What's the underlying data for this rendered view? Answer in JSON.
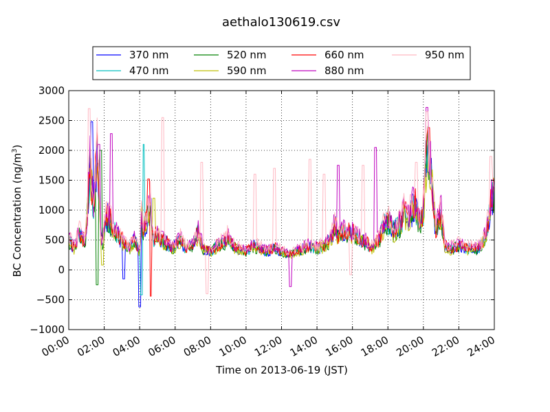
{
  "chart_data": {
    "type": "line",
    "title": "aethalo130619.csv",
    "xlabel": "Time on 2013-06-19 (JST)",
    "ylabel": "BC Concentration (ng/m",
    "ylabel_sup": "3",
    "ylabel_end": ")",
    "x_tick_labels": [
      "00:00",
      "02:00",
      "04:00",
      "06:00",
      "08:00",
      "10:00",
      "12:00",
      "14:00",
      "16:00",
      "18:00",
      "20:00",
      "22:00",
      "24:00"
    ],
    "x_ticks_hours": [
      0,
      2,
      4,
      6,
      8,
      10,
      12,
      14,
      16,
      18,
      20,
      22,
      24
    ],
    "xlim_hours": [
      0,
      24
    ],
    "y_ticks": [
      -1000,
      -500,
      0,
      500,
      1000,
      1500,
      2000,
      2500,
      3000
    ],
    "y_tick_labels": [
      "−1000",
      "−500",
      "0",
      "500",
      "1000",
      "1500",
      "2000",
      "2500",
      "3000"
    ],
    "ylim": [
      -1000,
      3000
    ],
    "grid": true,
    "legend_position": "top",
    "legend_columns": 4,
    "base_profile": {
      "x_hours": [
        0,
        0.3,
        0.6,
        0.9,
        1.0,
        1.2,
        1.4,
        1.6,
        1.8,
        1.9,
        2.0,
        2.2,
        2.5,
        2.8,
        3.1,
        3.4,
        3.7,
        3.9,
        4.0,
        4.1,
        4.2,
        4.4,
        4.6,
        4.8,
        5.0,
        5.2,
        5.5,
        5.8,
        6.0,
        6.3,
        6.6,
        7.0,
        7.3,
        7.6,
        8.0,
        8.4,
        8.8,
        9.0,
        9.2,
        9.6,
        10.0,
        10.4,
        10.8,
        11.2,
        11.6,
        12.0,
        12.4,
        12.8,
        13.2,
        13.6,
        14.0,
        14.4,
        14.8,
        15.0,
        15.2,
        15.6,
        16.0,
        16.4,
        16.8,
        17.0,
        17.2,
        17.5,
        17.8,
        18.0,
        18.3,
        18.6,
        18.9,
        19.2,
        19.5,
        19.8,
        20.0,
        20.2,
        20.4,
        20.7,
        21.0,
        21.2,
        21.5,
        22.0,
        22.5,
        23.0,
        23.3,
        23.6,
        23.9,
        24.0
      ],
      "values": [
        500,
        350,
        600,
        450,
        700,
        1700,
        1000,
        2000,
        600,
        400,
        700,
        900,
        650,
        550,
        450,
        350,
        500,
        350,
        300,
        900,
        650,
        800,
        1100,
        500,
        600,
        500,
        450,
        350,
        400,
        500,
        350,
        400,
        600,
        350,
        300,
        400,
        450,
        550,
        400,
        350,
        300,
        400,
        350,
        300,
        350,
        300,
        250,
        300,
        350,
        400,
        350,
        400,
        500,
        750,
        550,
        650,
        600,
        500,
        450,
        350,
        400,
        500,
        750,
        800,
        650,
        700,
        900,
        850,
        1100,
        700,
        1000,
        2000,
        1700,
        650,
        950,
        400,
        350,
        400,
        350,
        350,
        400,
        700,
        1200,
        1400
      ]
    },
    "series": [
      {
        "name": "370 nm",
        "color": "#0000ff",
        "scale": 1.0,
        "peaks": [
          {
            "x": 1.3,
            "y": 2480
          },
          {
            "x": 4.0,
            "y": -620
          },
          {
            "x": 3.1,
            "y": -150
          }
        ]
      },
      {
        "name": "470 nm",
        "color": "#00bfbf",
        "scale": 1.02,
        "peaks": [
          {
            "x": 4.2,
            "y": 2100
          },
          {
            "x": 4.1,
            "y": -420
          }
        ]
      },
      {
        "name": "520 nm",
        "color": "#008000",
        "scale": 0.98,
        "peaks": [
          {
            "x": 1.6,
            "y": -250
          },
          {
            "x": 1.8,
            "y": 2000
          }
        ]
      },
      {
        "name": "590 nm",
        "color": "#bfbf00",
        "scale": 0.97,
        "peaks": [
          {
            "x": 1.9,
            "y": 80
          },
          {
            "x": 4.8,
            "y": 1200
          }
        ]
      },
      {
        "name": "660 nm",
        "color": "#ff0000",
        "scale": 1.05,
        "peaks": [
          {
            "x": 4.6,
            "y": -440
          },
          {
            "x": 4.5,
            "y": 1520
          },
          {
            "x": 20.3,
            "y": 2380
          }
        ]
      },
      {
        "name": "880 nm",
        "color": "#bf00bf",
        "scale": 1.1,
        "peaks": [
          {
            "x": 2.4,
            "y": 2280
          },
          {
            "x": 1.7,
            "y": 2100
          },
          {
            "x": 15.2,
            "y": 1750
          },
          {
            "x": 17.3,
            "y": 2050
          },
          {
            "x": 20.2,
            "y": 2720
          },
          {
            "x": 12.5,
            "y": -280
          }
        ]
      },
      {
        "name": "950 nm",
        "color": "#ffb6c1",
        "scale": 1.15,
        "peaks": [
          {
            "x": 1.15,
            "y": 2700
          },
          {
            "x": 5.3,
            "y": 2550
          },
          {
            "x": 7.5,
            "y": 1800
          },
          {
            "x": 7.8,
            "y": -400
          },
          {
            "x": 10.5,
            "y": 1600
          },
          {
            "x": 11.6,
            "y": 1700
          },
          {
            "x": 13.6,
            "y": 1850
          },
          {
            "x": 14.4,
            "y": 1600
          },
          {
            "x": 15.9,
            "y": -80
          },
          {
            "x": 16.6,
            "y": 1750
          },
          {
            "x": 19.6,
            "y": 1800
          },
          {
            "x": 20.2,
            "y": 2650
          },
          {
            "x": 23.8,
            "y": 1900
          }
        ]
      }
    ]
  }
}
